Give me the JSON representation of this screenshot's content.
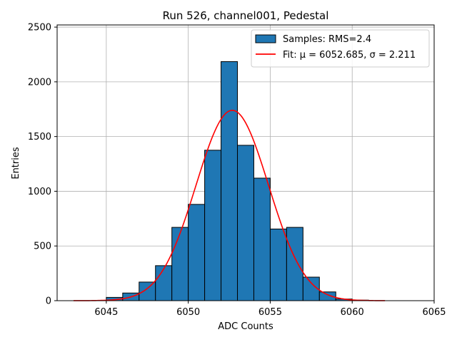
{
  "chart_data": {
    "type": "bar",
    "title": "Run 526, channel001, Pedestal",
    "xlabel": "ADC Counts",
    "ylabel": "Entries",
    "xlim": [
      6042,
      6065
    ],
    "ylim": [
      0,
      2520
    ],
    "xticks": [
      6045,
      6050,
      6055,
      6060,
      6065
    ],
    "xtick_labels": [
      "6045",
      "6050",
      "6055",
      "6060",
      "6065"
    ],
    "yticks": [
      0,
      500,
      1000,
      1500,
      2000,
      2500
    ],
    "ytick_labels": [
      "0",
      "500",
      "1000",
      "1500",
      "2000",
      "2500"
    ],
    "grid": true,
    "legend_position": "top-right",
    "bin_width": 1,
    "series": [
      {
        "name": "Samples: RMS=2.4",
        "kind": "histogram",
        "color": "#1f77b4",
        "edge_color": "#000000",
        "bins": [
          {
            "left": 6045,
            "count": 30
          },
          {
            "left": 6046,
            "count": 70
          },
          {
            "left": 6047,
            "count": 170
          },
          {
            "left": 6048,
            "count": 320
          },
          {
            "left": 6049,
            "count": 670
          },
          {
            "left": 6050,
            "count": 880
          },
          {
            "left": 6051,
            "count": 1375
          },
          {
            "left": 6052,
            "count": 2185
          },
          {
            "left": 6053,
            "count": 1420
          },
          {
            "left": 6054,
            "count": 1120
          },
          {
            "left": 6055,
            "count": 655
          },
          {
            "left": 6056,
            "count": 670
          },
          {
            "left": 6057,
            "count": 215
          },
          {
            "left": 6058,
            "count": 80
          },
          {
            "left": 6059,
            "count": 15
          },
          {
            "left": 6060,
            "count": 5
          }
        ]
      },
      {
        "name": "Fit: μ = 6052.685, σ = 2.211",
        "kind": "line",
        "color": "#ff0000",
        "mu": 6052.685,
        "sigma": 2.211,
        "amplitude": 1740,
        "x_range": [
          6043,
          6062
        ]
      }
    ]
  }
}
